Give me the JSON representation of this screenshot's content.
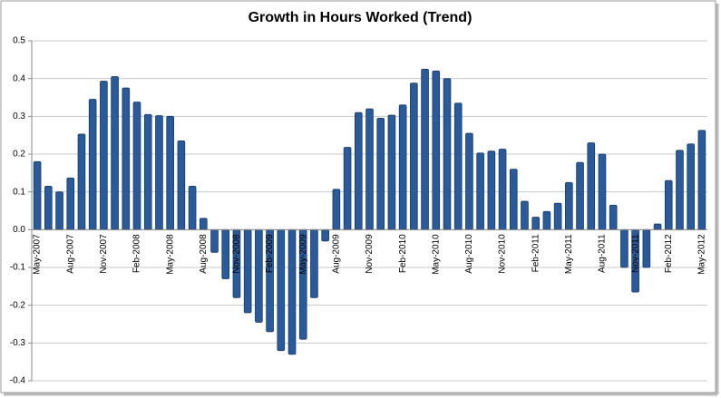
{
  "chart_data": {
    "type": "bar",
    "title": "Growth in Hours Worked (Trend)",
    "categories": [
      "May-2007",
      null,
      null,
      "Aug-2007",
      null,
      null,
      "Nov-2007",
      null,
      null,
      "Feb-2008",
      null,
      null,
      "May-2008",
      null,
      null,
      "Aug-2008",
      null,
      null,
      "Nov-2008",
      null,
      null,
      "Feb-2009",
      null,
      null,
      "May-2009",
      null,
      null,
      "Aug-2009",
      null,
      null,
      "Nov-2009",
      null,
      null,
      "Feb-2010",
      null,
      null,
      "May-2010",
      null,
      null,
      "Aug-2010",
      null,
      null,
      "Nov-2010",
      null,
      null,
      "Feb-2011",
      null,
      null,
      "May-2011",
      null,
      null,
      "Aug-2011",
      null,
      null,
      "Nov-2011",
      null,
      null,
      "Feb-2012",
      null,
      null,
      "May-2012"
    ],
    "values": [
      0.18,
      0.115,
      0.1,
      0.137,
      0.253,
      0.345,
      0.393,
      0.405,
      0.375,
      0.338,
      0.305,
      0.302,
      0.3,
      0.235,
      0.115,
      0.03,
      -0.06,
      -0.13,
      -0.18,
      -0.22,
      -0.245,
      -0.27,
      -0.32,
      -0.33,
      -0.29,
      -0.18,
      -0.03,
      0.107,
      0.218,
      0.31,
      0.32,
      0.295,
      0.303,
      0.33,
      0.388,
      0.425,
      0.42,
      0.4,
      0.335,
      0.255,
      0.203,
      0.208,
      0.213,
      0.16,
      0.075,
      0.033,
      0.048,
      0.07,
      0.125,
      0.178,
      0.23,
      0.2,
      0.065,
      -0.1,
      -0.165,
      -0.1,
      0.015,
      0.13,
      0.21,
      0.227,
      0.263
    ],
    "color": "#2a5a9a",
    "ylim": [
      -0.4,
      0.5
    ],
    "yticks": [
      -0.4,
      -0.3,
      -0.2,
      -0.1,
      {
        "value": 0,
        "label": "0.0"
      },
      0.1,
      0.2,
      0.3,
      0.4,
      0.5
    ],
    "grid": true
  }
}
